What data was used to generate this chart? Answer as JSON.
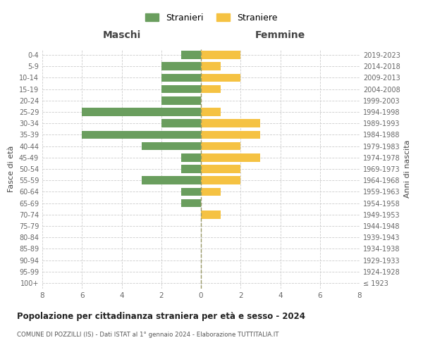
{
  "age_groups": [
    "100+",
    "95-99",
    "90-94",
    "85-89",
    "80-84",
    "75-79",
    "70-74",
    "65-69",
    "60-64",
    "55-59",
    "50-54",
    "45-49",
    "40-44",
    "35-39",
    "30-34",
    "25-29",
    "20-24",
    "15-19",
    "10-14",
    "5-9",
    "0-4"
  ],
  "birth_years": [
    "≤ 1923",
    "1924-1928",
    "1929-1933",
    "1934-1938",
    "1939-1943",
    "1944-1948",
    "1949-1953",
    "1954-1958",
    "1959-1963",
    "1964-1968",
    "1969-1973",
    "1974-1978",
    "1979-1983",
    "1984-1988",
    "1989-1993",
    "1994-1998",
    "1999-2003",
    "2004-2008",
    "2009-2013",
    "2014-2018",
    "2019-2023"
  ],
  "maschi": [
    0,
    0,
    0,
    0,
    0,
    0,
    0,
    1,
    1,
    3,
    1,
    1,
    3,
    6,
    2,
    6,
    2,
    2,
    2,
    2,
    1
  ],
  "femmine": [
    0,
    0,
    0,
    0,
    0,
    0,
    1,
    0,
    1,
    2,
    2,
    3,
    2,
    3,
    3,
    1,
    0,
    1,
    2,
    1,
    2
  ],
  "color_maschi": "#6a9e5e",
  "color_femmine": "#f5c242",
  "title": "Popolazione per cittadinanza straniera per età e sesso - 2024",
  "subtitle": "COMUNE DI POZZILLI (IS) - Dati ISTAT al 1° gennaio 2024 - Elaborazione TUTTITALIA.IT",
  "legend_maschi": "Stranieri",
  "legend_femmine": "Straniere",
  "xlabel_left": "Maschi",
  "xlabel_right": "Femmine",
  "ylabel_left": "Fasce di età",
  "ylabel_right": "Anni di nascita",
  "xlim": 8,
  "background_color": "#ffffff",
  "grid_color": "#cccccc"
}
